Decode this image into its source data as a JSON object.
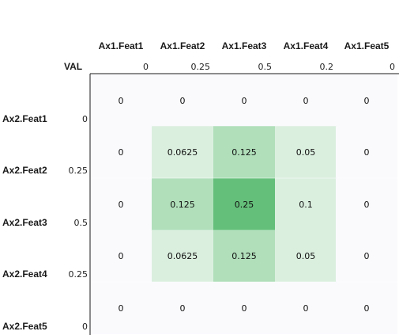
{
  "chart_data": {
    "type": "heatmap",
    "corner_label": "VAL",
    "columns": [
      "Ax1.Feat1",
      "Ax1.Feat2",
      "Ax1.Feat3",
      "Ax1.Feat4",
      "Ax1.Feat5"
    ],
    "column_values": [
      "0",
      "0.25",
      "0.5",
      "0.2",
      "0"
    ],
    "rows": [
      "Ax2.Feat1",
      "Ax2.Feat2",
      "Ax2.Feat3",
      "Ax2.Feat4",
      "Ax2.Feat5"
    ],
    "row_values": [
      "0",
      "0.25",
      "0.5",
      "0.25",
      "0"
    ],
    "values": [
      [
        "0",
        "0",
        "0",
        "0",
        "0"
      ],
      [
        "0",
        "0.0625",
        "0.125",
        "0.05",
        "0"
      ],
      [
        "0",
        "0.125",
        "0.25",
        "0.1",
        "0"
      ],
      [
        "0",
        "0.0625",
        "0.125",
        "0.05",
        "0"
      ],
      [
        "0",
        "0",
        "0",
        "0",
        "0"
      ]
    ],
    "colors": {
      "zero": "#fafafd",
      "low": "#dbefdf",
      "mid": "#b0dfba",
      "high": "#64bf7a",
      "border": "#1a1a1a"
    }
  }
}
